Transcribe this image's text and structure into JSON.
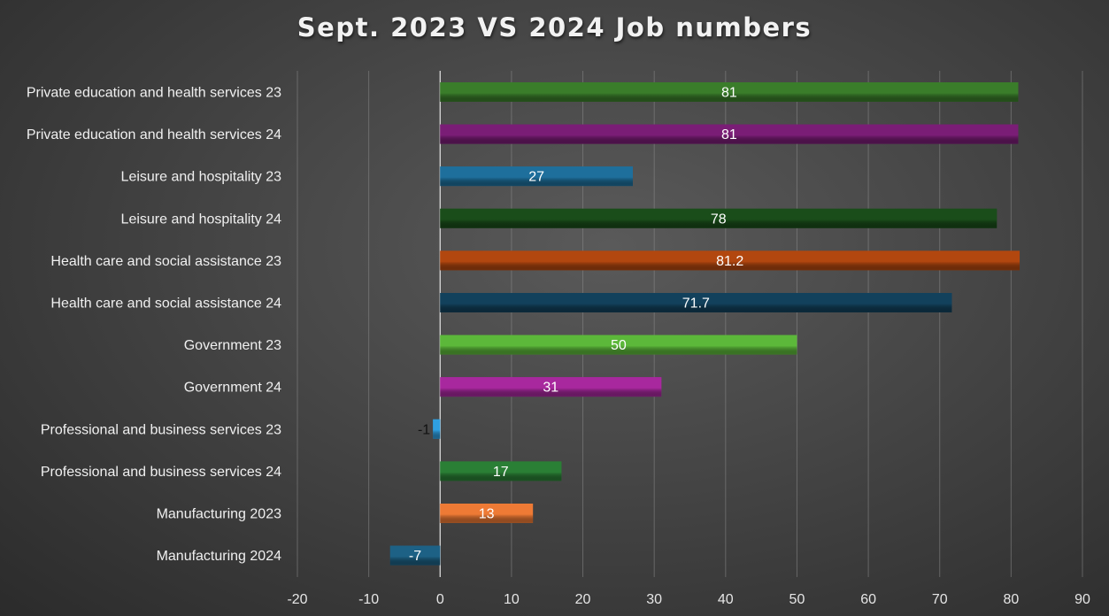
{
  "chart_data": {
    "type": "bar",
    "orientation": "horizontal",
    "title": "Sept. 2023 VS 2024 Job numbers",
    "xlabel": "",
    "ylabel": "",
    "xlim": [
      -20,
      90
    ],
    "xticks": [
      -20,
      -10,
      0,
      10,
      20,
      30,
      40,
      50,
      60,
      70,
      80,
      90
    ],
    "grid": true,
    "legend": "none",
    "categories": [
      "Private education and health services 23",
      "Private education and health services 24",
      "Leisure and hospitality 23",
      "Leisure and hospitality 24",
      "Health care and social assistance 23",
      "Health care and social assistance 24",
      "Government 23",
      "Government 24",
      "Professional and business services 23",
      "Professional and business services 24",
      "Manufacturing 2023",
      "Manufacturing 2024"
    ],
    "values": [
      81,
      81,
      27,
      78,
      81.2,
      71.7,
      50,
      31,
      -1,
      17,
      13,
      -7
    ],
    "data_labels": [
      "81",
      "81",
      "27",
      "78",
      "81.2",
      "71.7",
      "50",
      "31",
      "-1",
      "17",
      "13",
      "-7"
    ],
    "colors": [
      "#3a7d2a",
      "#7a1d76",
      "#1e6f9c",
      "#1a4d1a",
      "#b2470f",
      "#12415c",
      "#5cb83a",
      "#a8289e",
      "#2f9fe0",
      "#2a7f35",
      "#ee7a35",
      "#1d6185"
    ]
  }
}
